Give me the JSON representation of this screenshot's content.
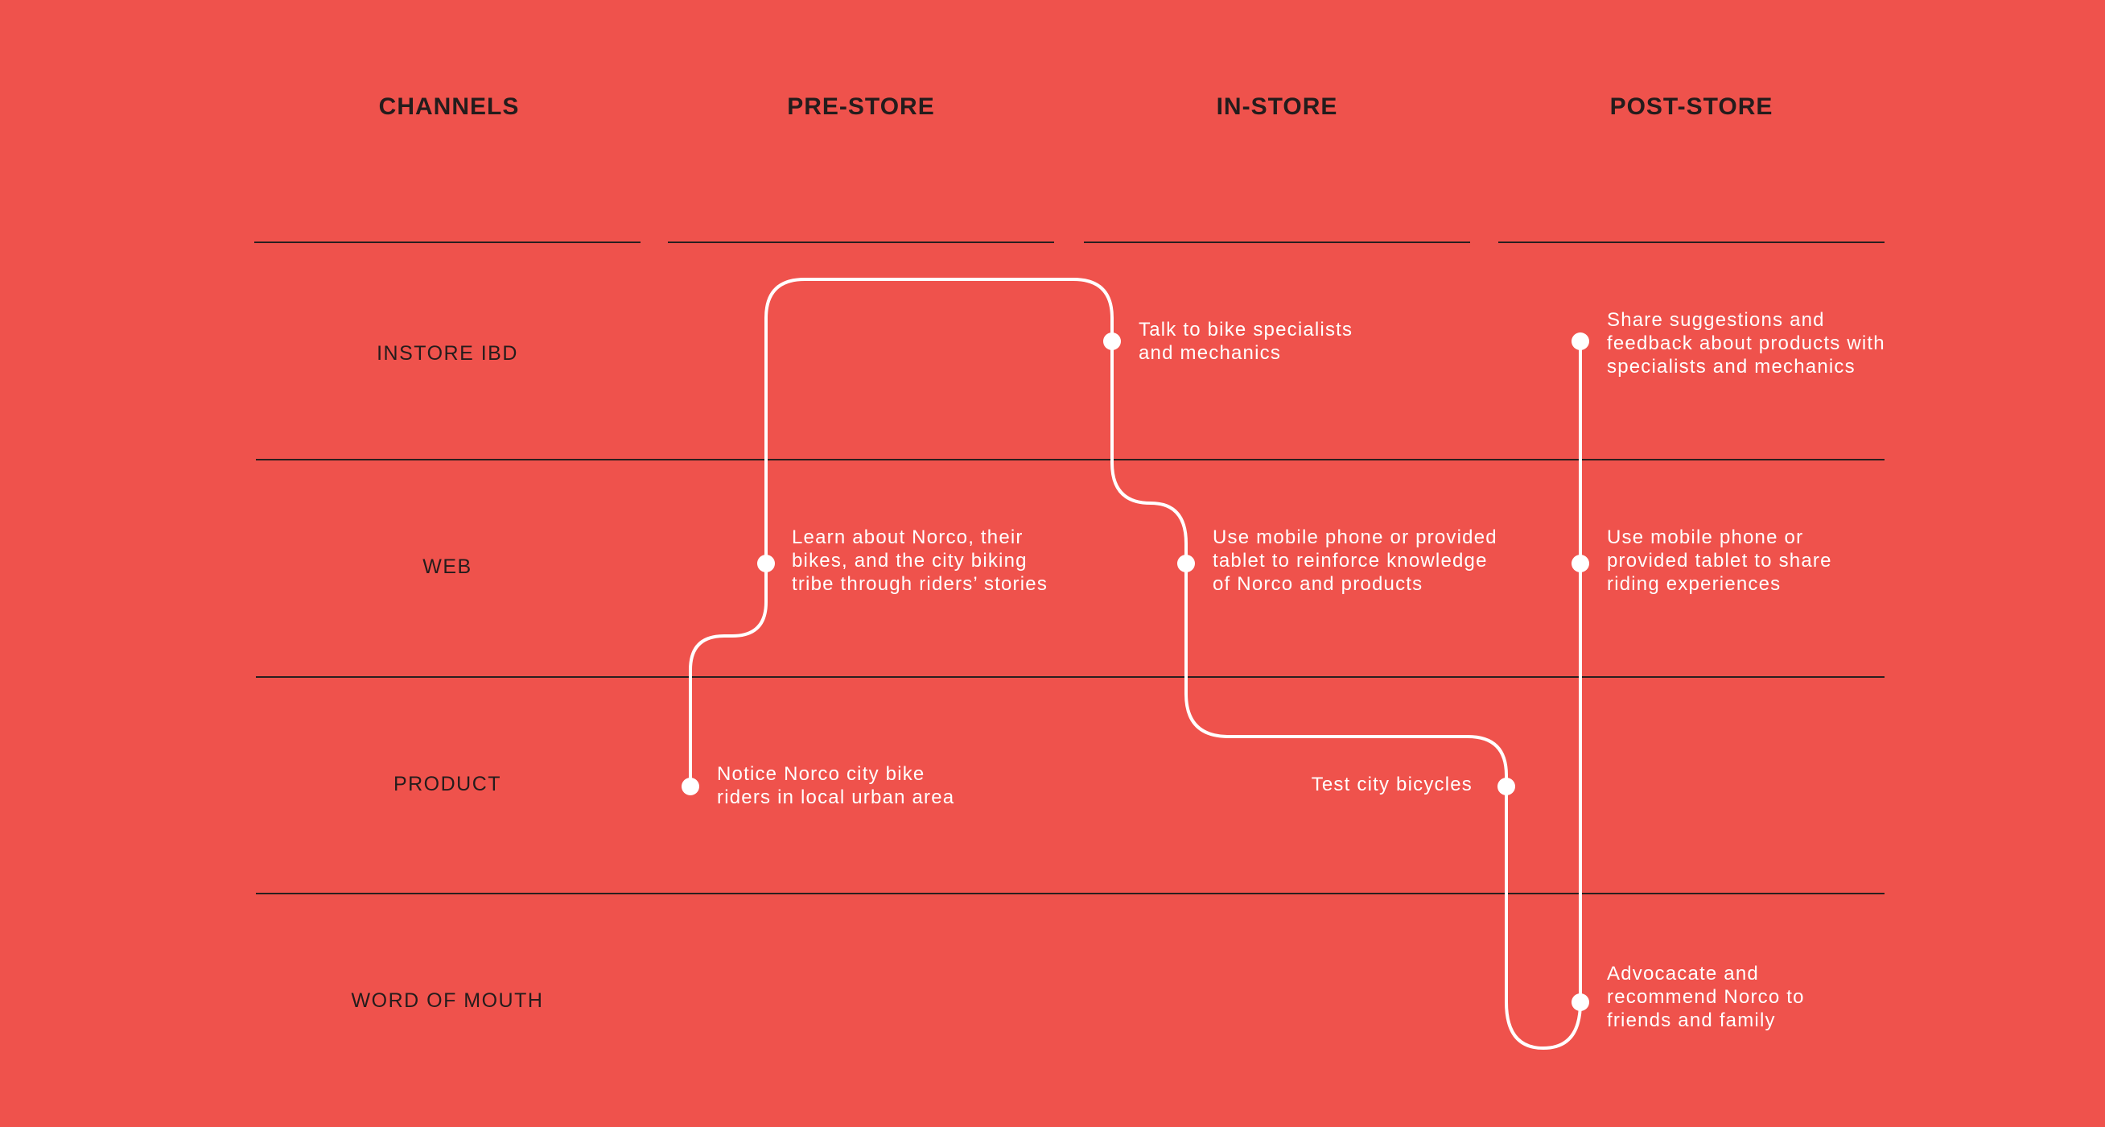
{
  "stages": [
    {
      "label": "CHANNELS"
    },
    {
      "label": "PRE-STORE"
    },
    {
      "label": "IN-STORE"
    },
    {
      "label": "POST-STORE"
    }
  ],
  "channels": [
    {
      "label": "INSTORE IBD"
    },
    {
      "label": "WEB"
    },
    {
      "label": "PRODUCT"
    },
    {
      "label": "WORD OF MOUTH"
    }
  ],
  "steps": [
    {
      "text": "Notice Norco city bike\nriders in local urban area",
      "stage": "PRE-STORE",
      "channel": "PRODUCT"
    },
    {
      "text": "Learn about Norco, their\nbikes, and the city biking\ntribe through riders’ stories",
      "stage": "PRE-STORE",
      "channel": "WEB"
    },
    {
      "text": "Talk to bike specialists\nand mechanics",
      "stage": "IN-STORE",
      "channel": "INSTORE IBD"
    },
    {
      "text": "Use mobile phone or provided\ntablet to reinforce knowledge\nof Norco and products",
      "stage": "IN-STORE",
      "channel": "WEB"
    },
    {
      "text": "Test city bicycles",
      "stage": "IN-STORE",
      "channel": "PRODUCT"
    },
    {
      "text": "Advocacate and\nrecommend Norco to\nfriends and family",
      "stage": "POST-STORE",
      "channel": "WORD OF MOUTH"
    },
    {
      "text": "Use mobile phone or\nprovided tablet to share\nriding experiences",
      "stage": "POST-STORE",
      "channel": "WEB"
    },
    {
      "text": "Share suggestions and\nfeedback about products with\nspecialists and mechanics",
      "stage": "POST-STORE",
      "channel": "INSTORE IBD"
    }
  ],
  "colors": {
    "background": "#EF524C",
    "journey_line": "#FFFFFF",
    "grid_line": "#2A1F1F",
    "label_text": "#241C1C"
  }
}
